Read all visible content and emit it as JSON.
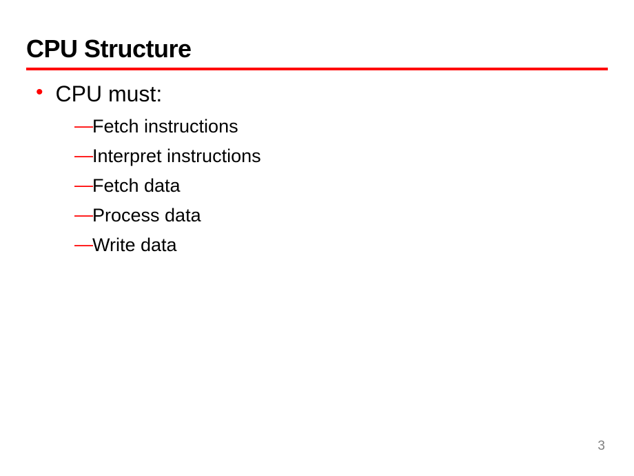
{
  "slide": {
    "title": "CPU Structure",
    "title_fontsize": 36,
    "title_color": "#000000",
    "rule_color": "#ff0000",
    "rule_height": 4,
    "background_color": "#ffffff",
    "bullet_color": "#ff0000",
    "dash_color": "#ff0000",
    "text_color": "#000000",
    "level1_fontsize": 32,
    "level2_fontsize": 27,
    "content": {
      "main_item": "CPU must:",
      "sub_items": [
        "Fetch instructions",
        "Interpret instructions",
        "Fetch data",
        "Process data",
        "Write data"
      ]
    },
    "page_number": "3",
    "page_number_color": "#808080",
    "page_number_fontsize": 19
  }
}
